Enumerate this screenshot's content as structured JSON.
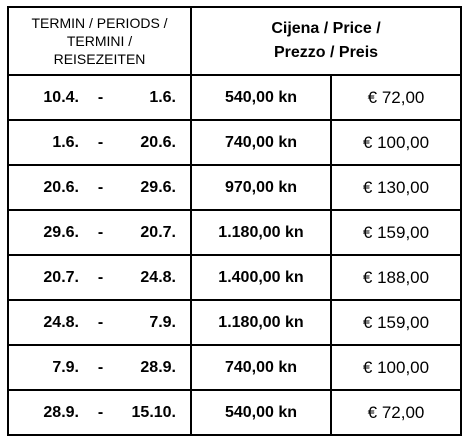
{
  "header": {
    "period_lines": [
      "TERMIN / PERIODS /",
      "TERMINI /",
      "REISEZEITEN"
    ],
    "price_lines": [
      "Cijena / Price /",
      "Prezzo / Preis"
    ]
  },
  "separator": "-",
  "rows": [
    {
      "start": "10.4.",
      "end": "1.6.",
      "kn": "540,00 kn",
      "eur": "€ 72,00"
    },
    {
      "start": "1.6.",
      "end": "20.6.",
      "kn": "740,00 kn",
      "eur": "€ 100,00"
    },
    {
      "start": "20.6.",
      "end": "29.6.",
      "kn": "970,00 kn",
      "eur": "€ 130,00"
    },
    {
      "start": "29.6.",
      "end": "20.7.",
      "kn": "1.180,00 kn",
      "eur": "€ 159,00"
    },
    {
      "start": "20.7.",
      "end": "24.8.",
      "kn": "1.400,00 kn",
      "eur": "€ 188,00"
    },
    {
      "start": "24.8.",
      "end": "7.9.",
      "kn": "1.180,00 kn",
      "eur": "€ 159,00"
    },
    {
      "start": "7.9.",
      "end": "28.9.",
      "kn": "740,00 kn",
      "eur": "€ 100,00"
    },
    {
      "start": "28.9.",
      "end": "15.10.",
      "kn": "540,00 kn",
      "eur": "€ 72,00"
    }
  ]
}
